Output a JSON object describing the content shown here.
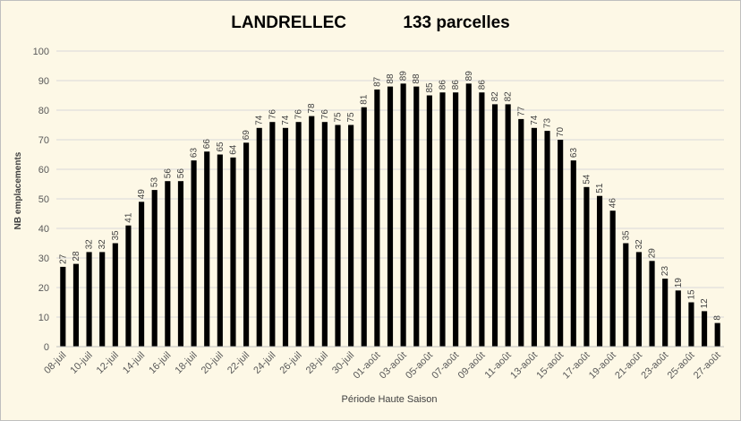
{
  "chart_data": {
    "type": "bar",
    "title_left": "LANDRELLEC",
    "title_right": "133 parcelles",
    "xlabel": "Période Haute Saison",
    "ylabel": "NB emplacements",
    "ylim": [
      0,
      100
    ],
    "yticks": [
      0,
      10,
      20,
      30,
      40,
      50,
      60,
      70,
      80,
      90,
      100
    ],
    "grid": true,
    "legend": "none",
    "bar_color": "#000000",
    "grid_color": "#d9d9d9",
    "x_tick_labels": [
      "08-juil",
      "10-juil",
      "12-juil",
      "14-juil",
      "16-juil",
      "18-juil",
      "20-juil",
      "22-juil",
      "24-juil",
      "26-juil",
      "28-juil",
      "30-juil",
      "01-août",
      "03-août",
      "05-août",
      "07-août",
      "09-août",
      "11-août",
      "13-août",
      "15-août",
      "17-août",
      "19-août",
      "21-août",
      "23-août",
      "25-août",
      "27-août"
    ],
    "values": [
      27,
      28,
      32,
      32,
      35,
      41,
      49,
      53,
      56,
      56,
      63,
      66,
      65,
      64,
      69,
      74,
      76,
      74,
      76,
      78,
      76,
      75,
      75,
      81,
      87,
      88,
      89,
      88,
      85,
      86,
      86,
      89,
      86,
      82,
      82,
      77,
      74,
      73,
      70,
      63,
      54,
      51,
      46,
      35,
      32,
      29,
      23,
      19,
      15,
      12,
      8
    ]
  }
}
